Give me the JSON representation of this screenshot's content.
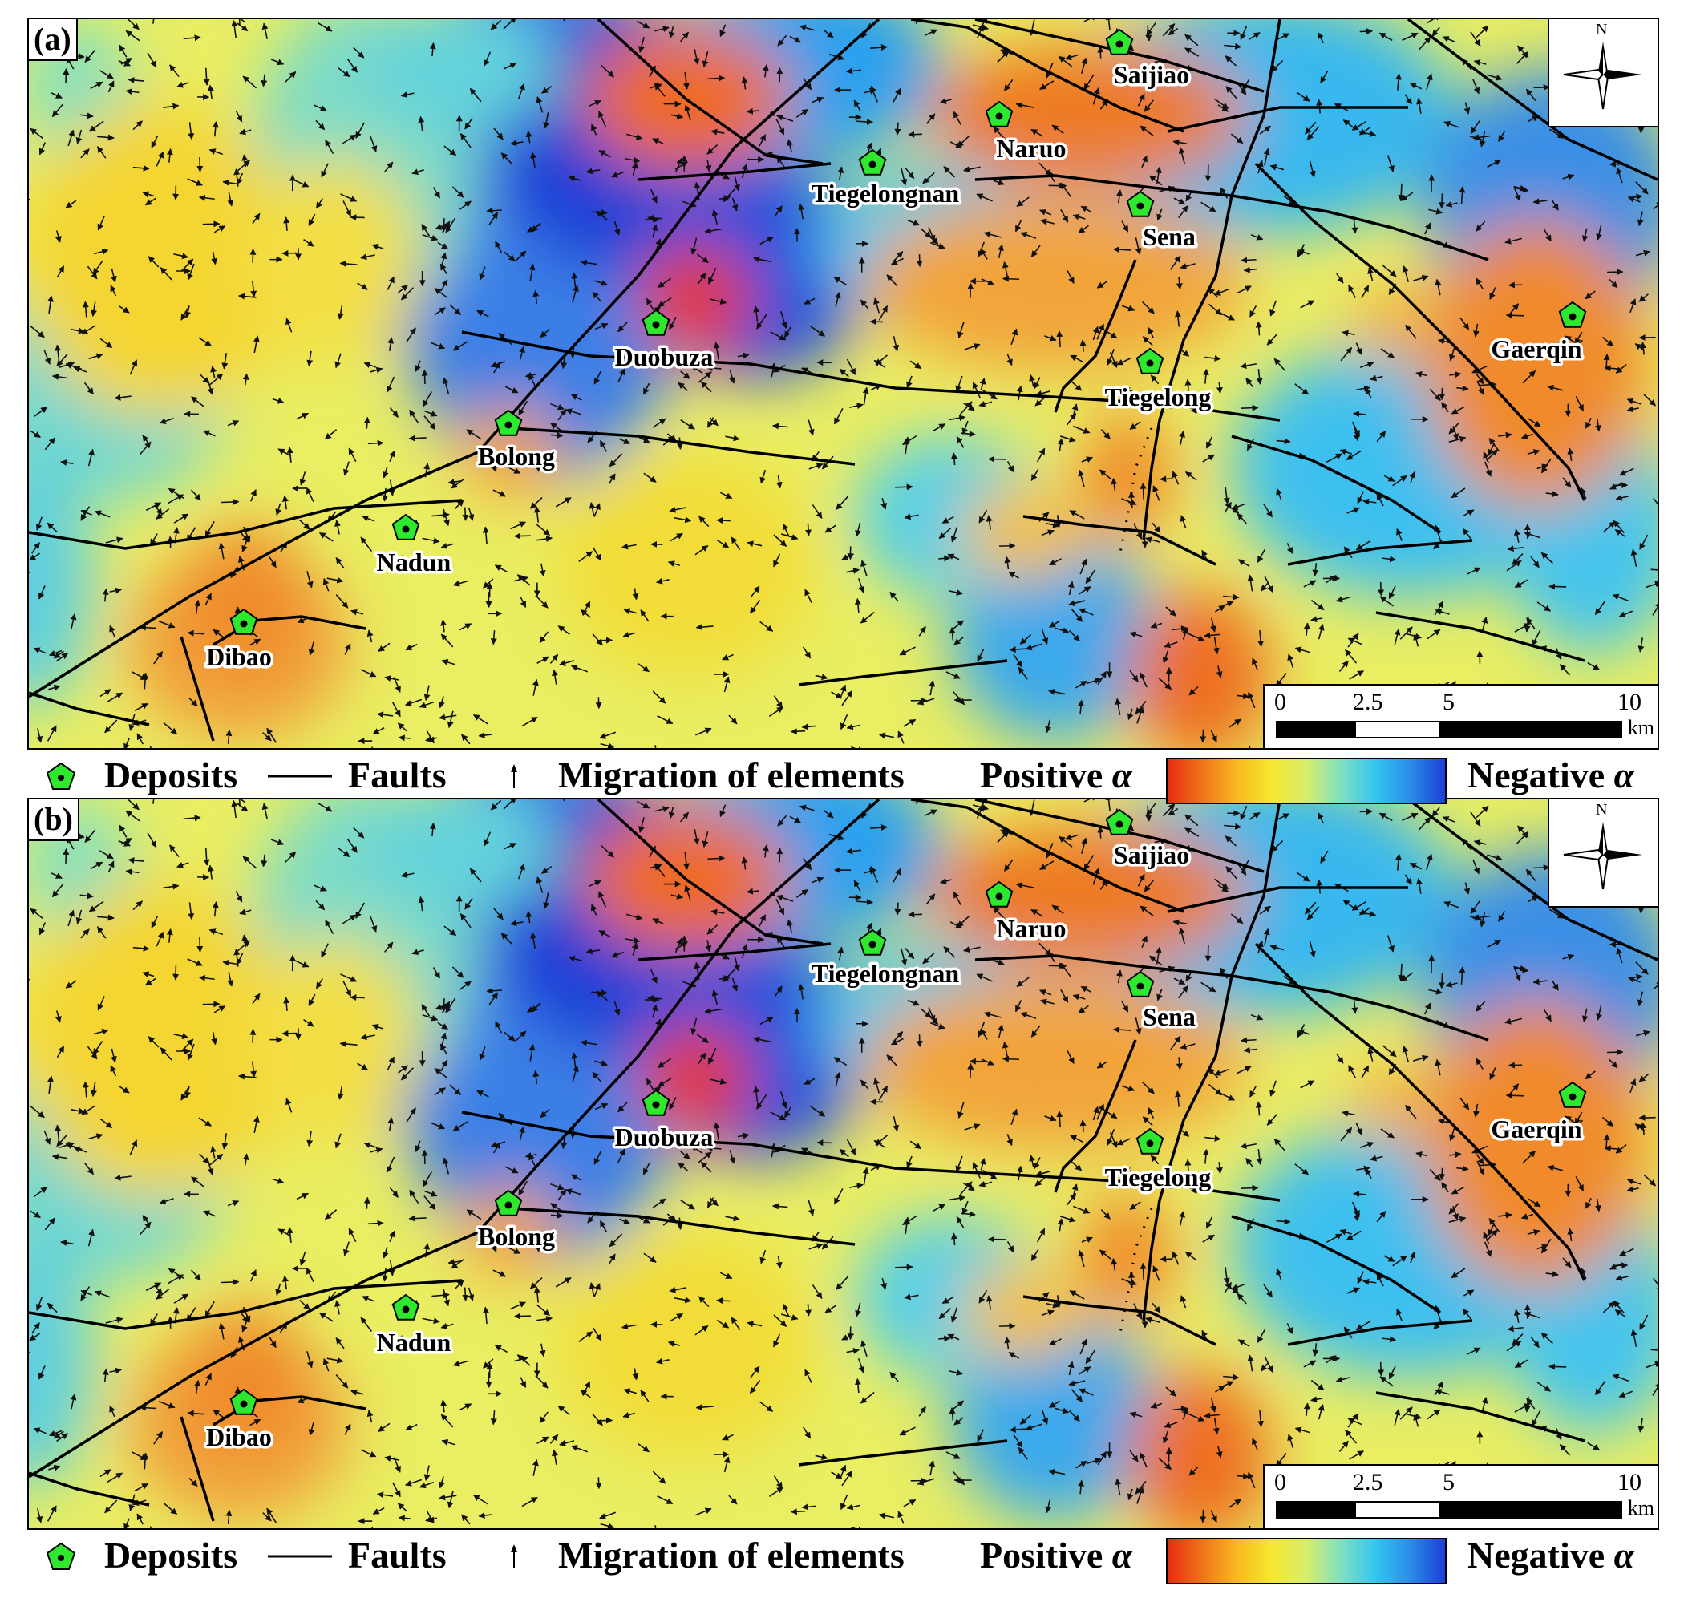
{
  "panels": [
    {
      "tag": "(a)"
    },
    {
      "tag": "(b)"
    }
  ],
  "deposits": [
    {
      "name": "Saijiao"
    },
    {
      "name": "Naruo"
    },
    {
      "name": "Tiegelongnan"
    },
    {
      "name": "Sena"
    },
    {
      "name": "Duobuza"
    },
    {
      "name": "Gaerqin"
    },
    {
      "name": "Tiegelong"
    },
    {
      "name": "Bolong"
    },
    {
      "name": "Nadun"
    },
    {
      "name": "Dibao"
    }
  ],
  "north_arrow": {
    "letter": "N",
    "icon": "compass-rose-icon"
  },
  "scale_bar": {
    "ticks": [
      "0",
      "2.5",
      "5",
      "10"
    ],
    "unit": "km"
  },
  "legend": {
    "deposits_label": "Deposits",
    "faults_label": "Faults",
    "migration_label": "Migration of elements",
    "positive_label": "Positive",
    "negative_label": "Negative",
    "alpha_symbol": "α",
    "colors": {
      "positive": "#e52b10",
      "neutral": "#f6e830",
      "negative": "#1d3ed8",
      "deposit": "#2ee82e"
    }
  }
}
